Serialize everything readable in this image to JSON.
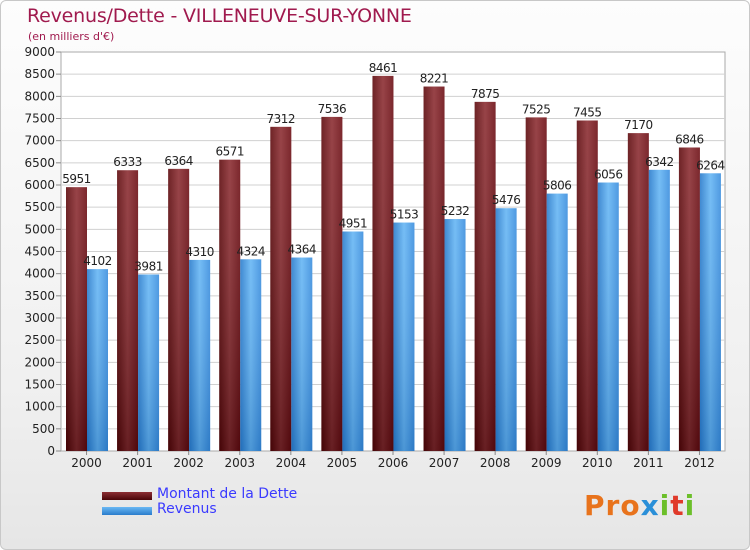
{
  "header": {
    "title": "Revenus/Dette - VILLENEUVE-SUR-YONNE",
    "subtitle": "(en milliers d'€)"
  },
  "colors": {
    "debt": "#6e0a0f",
    "debt_light": "#8c2e33",
    "revenue": "#2f7fd0",
    "revenue_light": "#5aaef0",
    "title": "#a01a4e",
    "legend_text": "#3a3aff"
  },
  "legend": {
    "items": [
      {
        "label": "Montant de la Dette",
        "color": "#6e0a0f"
      },
      {
        "label": "Revenus",
        "color": "#3f93e0"
      }
    ]
  },
  "logo": {
    "text": "Proxiti"
  },
  "chart_data": {
    "type": "bar",
    "title": "Revenus/Dette - VILLENEUVE-SUR-YONNE",
    "subtitle": "(en milliers d'€)",
    "categories": [
      "2000",
      "2001",
      "2002",
      "2003",
      "2004",
      "2005",
      "2006",
      "2007",
      "2008",
      "2009",
      "2010",
      "2011",
      "2012"
    ],
    "series": [
      {
        "name": "Montant de la Dette",
        "values": [
          5951,
          6333,
          6364,
          6571,
          7312,
          7536,
          8461,
          8221,
          7875,
          7525,
          7455,
          7170,
          6846
        ]
      },
      {
        "name": "Revenus",
        "values": [
          4102,
          3981,
          4310,
          4324,
          4364,
          4951,
          5153,
          5232,
          5476,
          5806,
          6056,
          6342,
          6264
        ]
      }
    ],
    "ylim": [
      0,
      9000
    ],
    "yticks": [
      0,
      500,
      1000,
      1500,
      2000,
      2500,
      3000,
      3500,
      4000,
      4500,
      5000,
      5500,
      6000,
      6500,
      7000,
      7500,
      8000,
      8500,
      9000
    ],
    "grid": true,
    "legend_position": "bottom-left"
  }
}
